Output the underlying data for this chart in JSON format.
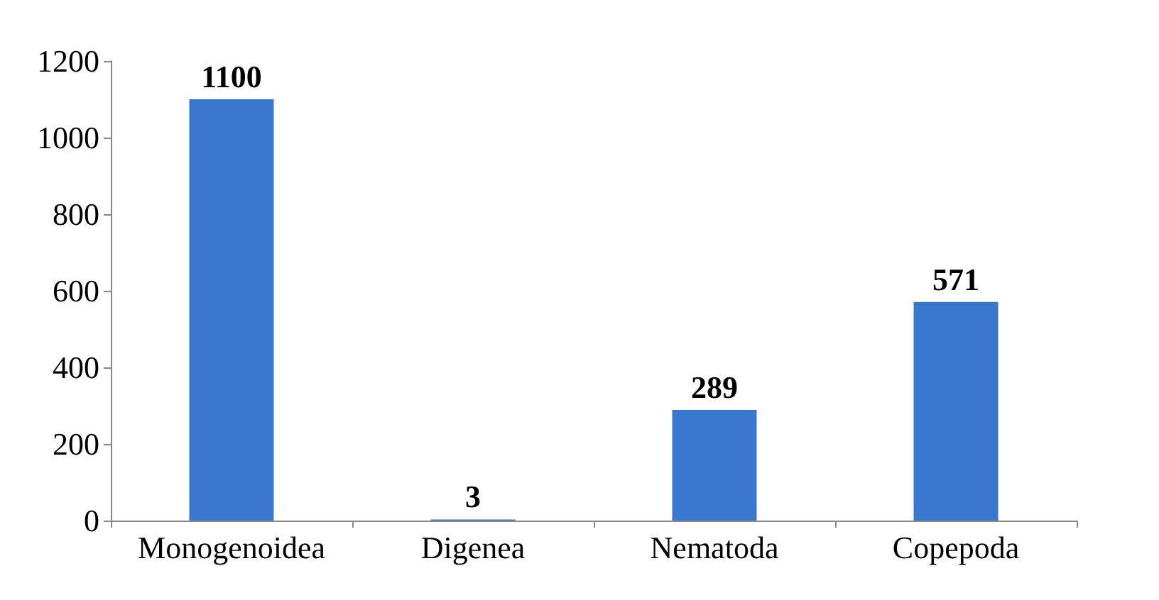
{
  "chart_data": {
    "type": "bar",
    "categories": [
      "Monogenoidea",
      "Digenea",
      "Nematoda",
      "Copepoda"
    ],
    "values": [
      1100,
      3,
      289,
      571
    ],
    "color": "#3a78d0",
    "ylim": [
      0,
      1200
    ],
    "yticks": [
      0,
      200,
      400,
      600,
      800,
      1000,
      1200
    ],
    "grid": false,
    "data_labels": true
  }
}
